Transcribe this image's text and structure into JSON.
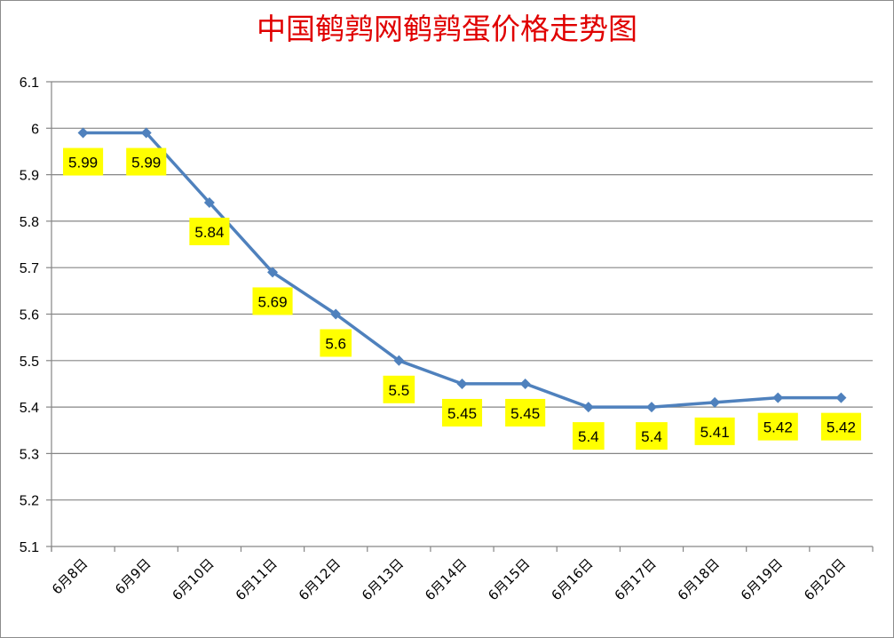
{
  "chart_data": {
    "type": "line",
    "title": "中国鹌鹑网鹌鹑蛋价格走势图",
    "xlabel": "",
    "ylabel": "",
    "categories": [
      "6月8日",
      "6月9日",
      "6月10日",
      "6月11日",
      "6月12日",
      "6月13日",
      "6月14日",
      "6月15日",
      "6月16日",
      "6月17日",
      "6月18日",
      "6月19日",
      "6月20日"
    ],
    "series": [
      {
        "values": [
          5.99,
          5.99,
          5.84,
          5.69,
          5.6,
          5.5,
          5.45,
          5.45,
          5.4,
          5.4,
          5.41,
          5.42,
          5.42
        ],
        "labels": [
          "5.99",
          "5.99",
          "5.84",
          "5.69",
          "5.6",
          "5.5",
          "5.45",
          "5.45",
          "5.4",
          "5.4",
          "5.41",
          "5.42",
          "5.42"
        ]
      }
    ],
    "ylim": [
      5.1,
      6.1
    ],
    "yticks": [
      "5.1",
      "5.2",
      "5.3",
      "5.4",
      "5.5",
      "5.6",
      "5.7",
      "5.8",
      "5.9",
      "6",
      "6.1"
    ],
    "grid": true,
    "legend": "none",
    "colors": {
      "line": "#4f81bd",
      "grid": "#868686",
      "label_bg": "#ffff00",
      "title": "#e00000"
    }
  }
}
